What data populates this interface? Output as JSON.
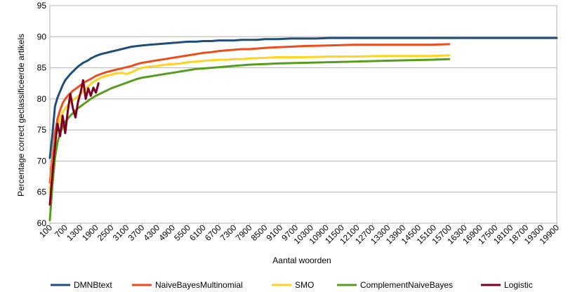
{
  "chart_data": {
    "type": "line",
    "title": "",
    "xlabel": "Aantal woorden",
    "ylabel": "Percentage correct geclassificeerde artikels",
    "ylim": [
      60,
      95
    ],
    "yticks": [
      "60",
      "65",
      "70",
      "75",
      "80",
      "85",
      "90",
      "95"
    ],
    "xlim": [
      100,
      19900
    ],
    "xticks": [
      "100",
      "700",
      "1300",
      "1900",
      "2500",
      "3100",
      "3700",
      "4300",
      "4900",
      "5500",
      "6100",
      "6700",
      "7300",
      "7900",
      "8500",
      "9100",
      "9700",
      "10300",
      "10900",
      "11500",
      "12100",
      "12700",
      "13300",
      "13900",
      "14500",
      "15100",
      "15700",
      "16300",
      "16900",
      "17500",
      "18100",
      "18700",
      "19300",
      "19900"
    ],
    "grid": "horizontal",
    "legend_position": "bottom",
    "series": [
      {
        "name": "DMNBtext",
        "color": "#1f4e79",
        "x": [
          100,
          200,
          300,
          400,
          500,
          600,
          700,
          800,
          900,
          1000,
          1100,
          1200,
          1300,
          1400,
          1500,
          1600,
          1700,
          1900,
          2100,
          2300,
          2500,
          2700,
          2900,
          3100,
          3300,
          3500,
          3700,
          4000,
          4300,
          4600,
          4900,
          5200,
          5500,
          5800,
          6100,
          6400,
          6700,
          7000,
          7300,
          7600,
          7900,
          8200,
          8500,
          9000,
          9500,
          10000,
          10500,
          11000,
          11500,
          12000,
          13000,
          14000,
          15000,
          16000,
          17000,
          18000,
          19000,
          19900
        ],
        "values": [
          70.5,
          74.2,
          78.8,
          80.2,
          81.2,
          82.2,
          83.0,
          83.5,
          84.0,
          84.4,
          84.8,
          85.2,
          85.5,
          85.8,
          86.0,
          86.2,
          86.5,
          86.9,
          87.2,
          87.4,
          87.6,
          87.8,
          88.0,
          88.2,
          88.4,
          88.5,
          88.6,
          88.7,
          88.8,
          88.9,
          89.0,
          89.1,
          89.2,
          89.2,
          89.3,
          89.3,
          89.4,
          89.4,
          89.4,
          89.5,
          89.5,
          89.5,
          89.6,
          89.6,
          89.7,
          89.7,
          89.7,
          89.8,
          89.8,
          89.8,
          89.8,
          89.8,
          89.8,
          89.8,
          89.8,
          89.8,
          89.8,
          89.8
        ]
      },
      {
        "name": "NaiveBayesMultinomial",
        "color": "#ee4d1b",
        "x": [
          100,
          200,
          300,
          400,
          500,
          600,
          700,
          800,
          900,
          1000,
          1100,
          1200,
          1300,
          1400,
          1500,
          1600,
          1700,
          1900,
          2100,
          2300,
          2500,
          2700,
          2900,
          3100,
          3300,
          3500,
          3700,
          4000,
          4300,
          4600,
          4900,
          5200,
          5500,
          5800,
          6100,
          6400,
          6700,
          7000,
          7300,
          7600,
          7900,
          8200,
          8500,
          9000,
          9500,
          10000,
          11000,
          12000,
          13000,
          14000,
          15000,
          15700
        ],
        "values": [
          66.5,
          70.5,
          74.5,
          76.8,
          78.2,
          79.3,
          80.0,
          80.5,
          80.9,
          81.3,
          81.6,
          81.9,
          82.2,
          82.5,
          82.8,
          83.0,
          83.2,
          83.7,
          84.0,
          84.3,
          84.5,
          84.7,
          84.9,
          85.1,
          85.3,
          85.6,
          85.8,
          86.0,
          86.2,
          86.4,
          86.6,
          86.8,
          87.0,
          87.2,
          87.4,
          87.5,
          87.7,
          87.8,
          87.9,
          88.0,
          88.0,
          88.1,
          88.2,
          88.3,
          88.4,
          88.5,
          88.6,
          88.7,
          88.7,
          88.7,
          88.7,
          88.8
        ]
      },
      {
        "name": "SMO",
        "color": "#ffd320",
        "x": [
          100,
          200,
          300,
          400,
          500,
          600,
          700,
          800,
          900,
          1000,
          1100,
          1200,
          1300,
          1400,
          1500,
          1600,
          1700,
          1900,
          2100,
          2300,
          2500,
          2700,
          2900,
          3100,
          3300,
          3500,
          3700,
          4000,
          4300,
          4600,
          4900,
          5200,
          5500,
          5800,
          6100,
          6400,
          6700,
          7000,
          7300,
          7600,
          7900,
          8500,
          9000,
          10000,
          11000,
          12000,
          13000,
          14000,
          15000,
          15700
        ],
        "values": [
          65.0,
          69.0,
          73.2,
          75.5,
          76.8,
          77.8,
          78.5,
          79.0,
          79.4,
          79.8,
          80.1,
          80.4,
          80.8,
          81.2,
          81.6,
          82.0,
          82.4,
          83.0,
          83.4,
          83.7,
          83.9,
          84.1,
          84.2,
          84.0,
          84.3,
          84.7,
          85.0,
          85.2,
          85.3,
          85.5,
          85.6,
          85.7,
          85.9,
          86.0,
          86.1,
          86.2,
          86.3,
          86.3,
          86.4,
          86.4,
          86.5,
          86.6,
          86.7,
          86.7,
          86.8,
          86.8,
          86.9,
          86.9,
          86.9,
          87.0
        ]
      },
      {
        "name": "ComplementNaiveBayes",
        "color": "#579d1c",
        "x": [
          100,
          200,
          300,
          400,
          500,
          600,
          700,
          800,
          900,
          1000,
          1100,
          1200,
          1300,
          1400,
          1500,
          1600,
          1700,
          1900,
          2100,
          2300,
          2500,
          2700,
          2900,
          3100,
          3300,
          3500,
          3700,
          4000,
          4300,
          4600,
          4900,
          5200,
          5500,
          5800,
          6100,
          6400,
          6700,
          7000,
          7300,
          7600,
          7900,
          8500,
          9000,
          10000,
          11000,
          12000,
          13000,
          14000,
          15000,
          15700
        ],
        "values": [
          60.5,
          66.0,
          70.5,
          73.0,
          74.5,
          75.5,
          76.3,
          76.8,
          77.3,
          77.7,
          78.1,
          78.5,
          78.8,
          79.1,
          79.4,
          79.7,
          80.0,
          80.5,
          80.9,
          81.3,
          81.7,
          82.0,
          82.3,
          82.6,
          82.9,
          83.2,
          83.4,
          83.6,
          83.8,
          84.0,
          84.2,
          84.4,
          84.6,
          84.8,
          84.9,
          85.0,
          85.1,
          85.2,
          85.3,
          85.4,
          85.5,
          85.6,
          85.7,
          85.8,
          85.9,
          86.0,
          86.1,
          86.2,
          86.3,
          86.4
        ]
      },
      {
        "name": "Logistic",
        "color": "#7e0021",
        "x": [
          100,
          200,
          300,
          400,
          500,
          600,
          700,
          800,
          900,
          1000,
          1100,
          1200,
          1300,
          1400,
          1500,
          1600,
          1700,
          1800,
          1900,
          2000
        ],
        "values": [
          63.0,
          68.0,
          72.5,
          76.0,
          74.0,
          77.3,
          74.5,
          78.0,
          80.8,
          78.5,
          77.0,
          79.5,
          81.0,
          83.0,
          80.0,
          81.7,
          80.5,
          81.8,
          81.0,
          82.5
        ]
      }
    ]
  }
}
